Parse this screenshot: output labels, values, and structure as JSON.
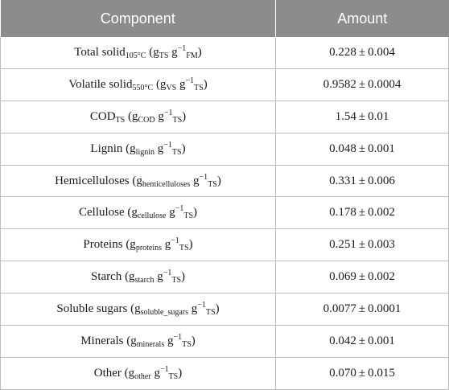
{
  "header": {
    "component": "Component",
    "amount": "Amount"
  },
  "rows": [
    {
      "name": "Total solid",
      "name_sub": "105°C",
      "unit_open": "(g",
      "u1_sub": "TS",
      "u2": "g",
      "u2_sup": "−1",
      "u2_sub": "FM",
      "unit_close": ")",
      "value": "0.228",
      "pm": "±",
      "error": "0.004"
    },
    {
      "name": "Volatile solid",
      "name_sub": "550°C",
      "unit_open": "(g",
      "u1_sub": "VS",
      "u2": "g",
      "u2_sup": "−1",
      "u2_sub": "TS",
      "unit_close": ")",
      "value": "0.9582",
      "pm": "±",
      "error": "0.0004"
    },
    {
      "name": "COD",
      "name_sub": "TS",
      "unit_open": "(g",
      "u1_sub": "COD",
      "u2": "g",
      "u2_sup": "−1",
      "u2_sub": "TS",
      "unit_close": ")",
      "value": "1.54",
      "pm": "±",
      "error": "0.01"
    },
    {
      "name": "Lignin",
      "name_sub": "",
      "unit_open": "(g",
      "u1_sub": "lignin",
      "u2": "g",
      "u2_sup": "−1",
      "u2_sub": "TS",
      "unit_close": ")",
      "value": "0.048",
      "pm": "±",
      "error": "0.001"
    },
    {
      "name": "Hemicelluloses",
      "name_sub": "",
      "unit_open": "(g",
      "u1_sub": "hemicelluloses",
      "u2": "g",
      "u2_sup": "−1",
      "u2_sub": "TS",
      "unit_close": ")",
      "value": "0.331",
      "pm": "±",
      "error": "0.006"
    },
    {
      "name": "Cellulose",
      "name_sub": "",
      "unit_open": "(g",
      "u1_sub": "cellulose",
      "u2": "g",
      "u2_sup": "−1",
      "u2_sub": "TS",
      "unit_close": ")",
      "value": "0.178",
      "pm": "±",
      "error": "0.002"
    },
    {
      "name": "Proteins",
      "name_sub": "",
      "unit_open": "(g",
      "u1_sub": "proteins",
      "u2": "g",
      "u2_sup": "−1",
      "u2_sub": "TS",
      "unit_close": ")",
      "value": "0.251",
      "pm": "±",
      "error": "0.003"
    },
    {
      "name": "Starch",
      "name_sub": "",
      "unit_open": "(g",
      "u1_sub": "starch",
      "u2": "g",
      "u2_sup": "−1",
      "u2_sub": "TS",
      "unit_close": ")",
      "value": "0.069",
      "pm": "±",
      "error": "0.002"
    },
    {
      "name": "Soluble sugars",
      "name_sub": "",
      "unit_open": "(g",
      "u1_sub": "soluble_sugars",
      "u2": "g",
      "u2_sup": "−1",
      "u2_sub": "TS",
      "unit_close": ")",
      "value": "0.0077",
      "pm": "±",
      "error": "0.0001"
    },
    {
      "name": "Minerals",
      "name_sub": "",
      "unit_open": "(g",
      "u1_sub": "minerals",
      "u2": "g",
      "u2_sup": "−1",
      "u2_sub": "TS",
      "unit_close": ")",
      "value": "0.042",
      "pm": "±",
      "error": "0.001"
    },
    {
      "name": "Other",
      "name_sub": "",
      "unit_open": "(g",
      "u1_sub": "other",
      "u2": "g",
      "u2_sup": "−1",
      "u2_sub": "TS",
      "unit_close": ")",
      "value": "0.070",
      "pm": "±",
      "error": "0.015"
    }
  ]
}
